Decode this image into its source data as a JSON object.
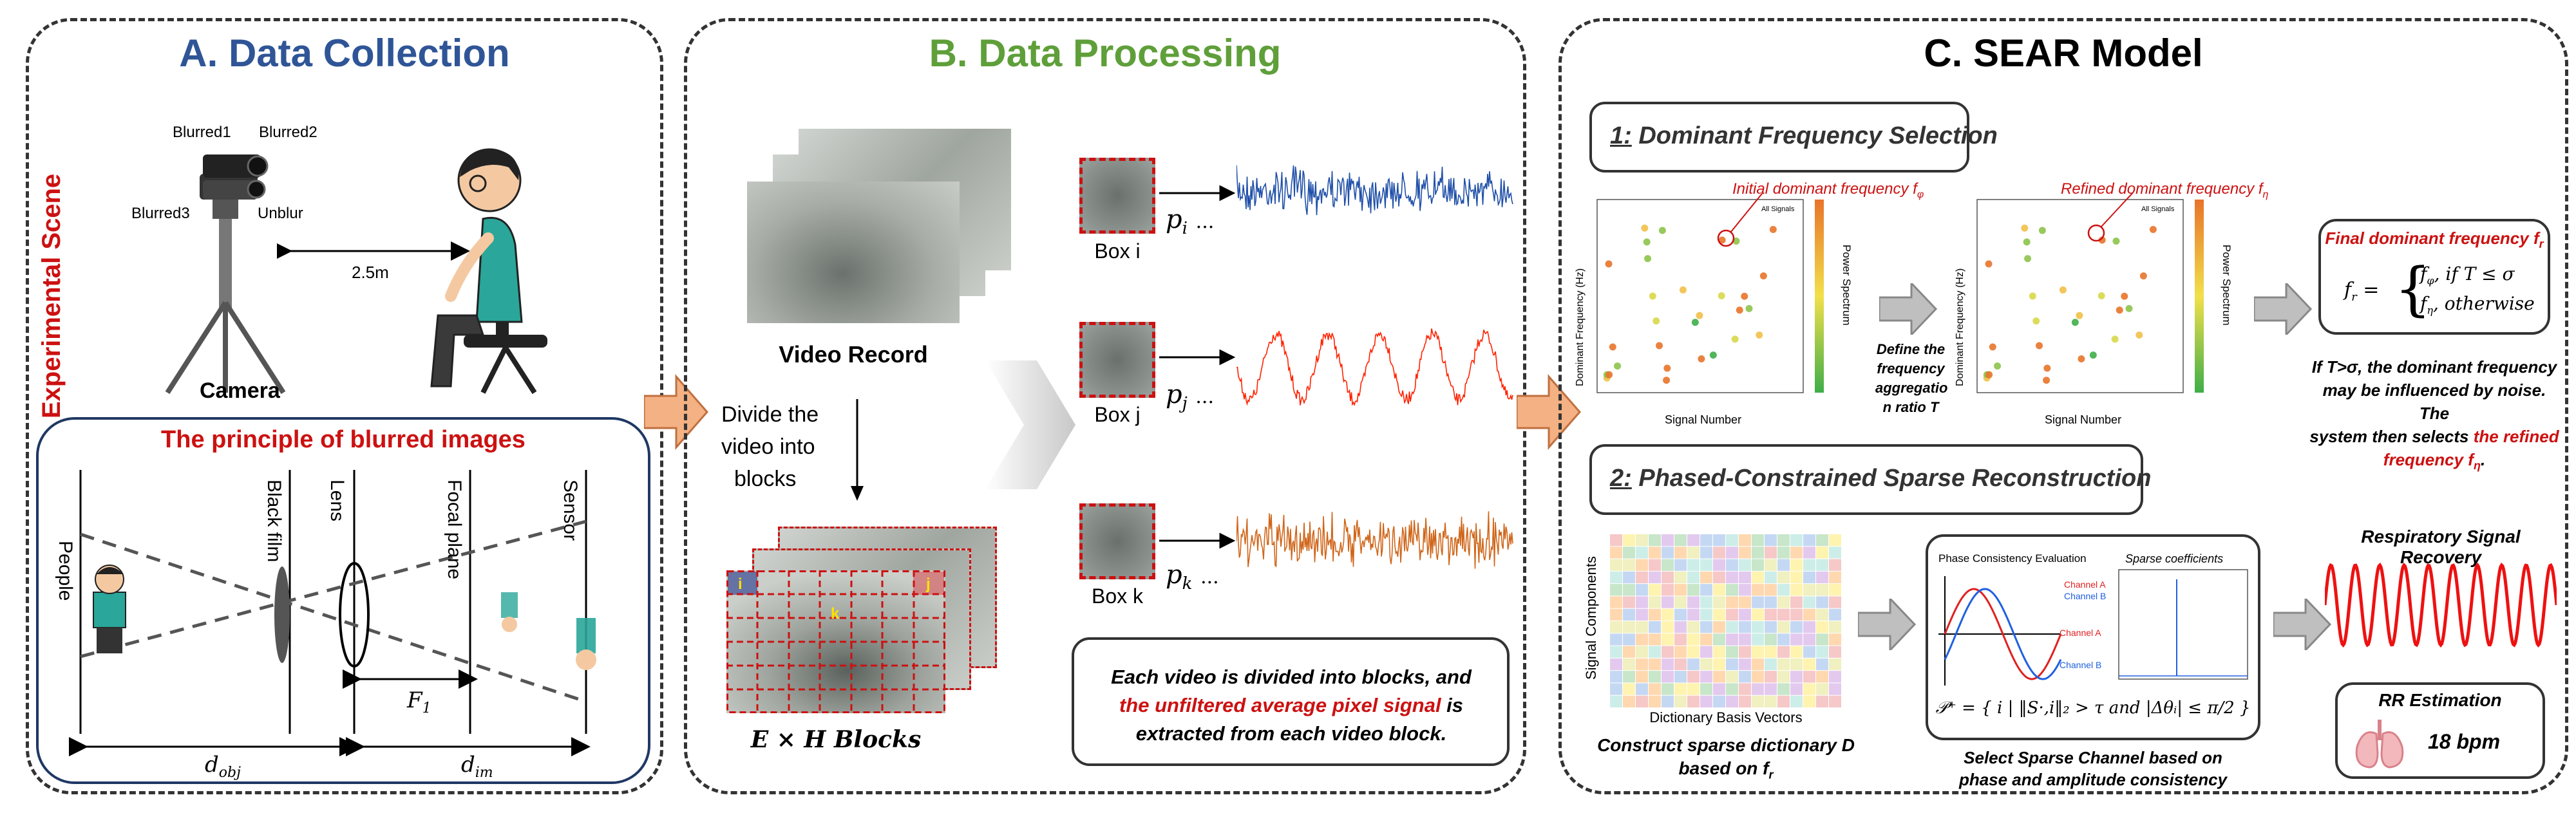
{
  "panels": {
    "a": {
      "title": "A. Data Collection",
      "color": "#2f5597"
    },
    "b": {
      "title": "B. Data Processing",
      "color": "#5f9f3a"
    },
    "c": {
      "title": "C. SEAR Model",
      "color": "#000000"
    }
  },
  "collection": {
    "scene_label": "Experimental Scene",
    "cam_labels": [
      "Blurred1",
      "Blurred2",
      "Blurred3",
      "Unblur"
    ],
    "distance": "2.5m",
    "camera_label": "Camera",
    "principle_title": "The principle of blurred images",
    "optics_labels": [
      "People",
      "Black film",
      "Lens",
      "Focal plane",
      "Sensor"
    ],
    "f1": "F",
    "f1_sub": "1",
    "d_obj": "d",
    "d_obj_sub": "obj",
    "d_im": "d",
    "d_im_sub": "im"
  },
  "processing": {
    "video_record": "Video Record",
    "divide_text": [
      "Divide the",
      "video into",
      "blocks"
    ],
    "blocks_label": "E × H Blocks",
    "block_letters": [
      "i",
      "j",
      "k"
    ],
    "boxes": [
      {
        "name": "Box i",
        "p": "p",
        "sub": "i",
        "color": "#1f4fa8"
      },
      {
        "name": "Box j",
        "p": "p",
        "sub": "j",
        "color": "#ff2200"
      },
      {
        "name": "Box k",
        "p": "p",
        "sub": "k",
        "color": "#d0661a"
      }
    ],
    "ellipsis": "...",
    "note_line1": "Each video is divided into blocks, and",
    "note_red": "the unfiltered average pixel signal",
    "note_line2_tail": " is",
    "note_line3": "extracted from each video block."
  },
  "sear": {
    "step1_num": "1:",
    "step1_title": " Dominant Frequency Selection",
    "step2_num": "2:",
    "step2_title": " Phased-Constrained Sparse Reconstruction",
    "initial_freq": "Initial dominant frequency f",
    "initial_sub": "φ",
    "refined_freq": "Refined dominant frequency f",
    "refined_sub": "η",
    "ylabel": "Dominant Frequency (Hz)",
    "xlabel": "Signal Number",
    "colorbar_label": "Power Spectrum",
    "legend": "All Signals",
    "define_text": [
      "Define the",
      "frequency",
      "aggregatio",
      "n ratio T"
    ],
    "final_title": "Final dominant frequency f",
    "final_sub": "r",
    "formula_lhs": "f",
    "formula_case1": "f",
    "formula_case1_sub": "φ",
    "formula_case1_cond": ", if T ≤ σ",
    "formula_case2": "f",
    "formula_case2_sub": "η",
    "formula_case2_cond": ", otherwise",
    "if_text": [
      "If T>σ, the dominant  frequency",
      "may be influenced by noise. The",
      "system then selects "
    ],
    "if_red": [
      "the refined",
      "frequency f"
    ],
    "if_red_sub": "η",
    "dict_ylabel": "Signal Components",
    "dict_xlabel": "Dictionary Basis Vectors",
    "dict_caption": [
      "Construct sparse dictionary D",
      "based on f"
    ],
    "dict_caption_sub": "r",
    "phase_title": "Phase Consistency Evaluation",
    "sparse_title": "Sparse coefficients",
    "channels": [
      "Channel A",
      "Channel B"
    ],
    "select_caption": [
      "Select Sparse Channel based on",
      "phase and amplitude consistency"
    ],
    "set_formula": "𝒫⁺ = { i | ‖S·,i‖₂ > τ and |Δθᵢ| ≤ π/2 }",
    "recovery_title": "Respiratory Signal Recovery",
    "rr_title": "RR Estimation",
    "rr_value": "18 bpm"
  },
  "colors": {
    "accent_red": "#cc1111",
    "signal_blue": "#1f4fa8",
    "signal_red": "#ff2200",
    "signal_orange": "#d0661a",
    "arrow_orange": "#f4b183",
    "arrow_gray": "#bfbfbf"
  }
}
